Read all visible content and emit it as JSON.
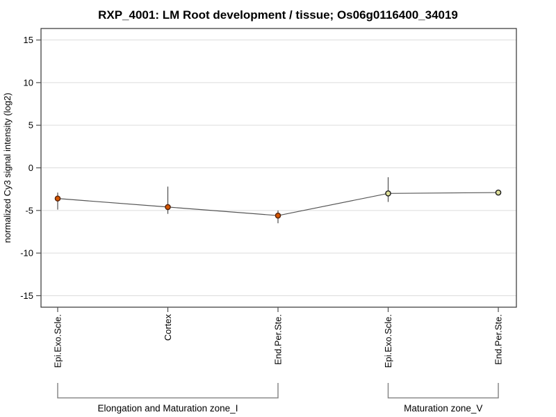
{
  "chart_data": {
    "type": "line",
    "title": "RXP_4001: LM Root development / tissue; Os06g0116400_34019",
    "ylabel": "normalized Cy3 signal intensity (log2)",
    "xlabel": "",
    "ylim": [
      -16.35,
      16.35
    ],
    "yticks": [
      15,
      10,
      5,
      0,
      -5,
      -10,
      -15
    ],
    "grid": true,
    "legend_position": "none",
    "categories": [
      "Epi.Exo.Scle.",
      "Cortex",
      "End.Per.Ste.",
      "Epi.Exo.Scle.",
      "End.Per.Ste."
    ],
    "series": [
      {
        "name": "normalized Cy3 signal intensity (log2)",
        "values": [
          -3.6,
          -4.6,
          -5.6,
          -3.0,
          -2.9
        ],
        "error_high": [
          -2.9,
          -2.2,
          -5.0,
          -1.1,
          -2.6
        ],
        "error_low": [
          -4.9,
          -5.4,
          -6.5,
          -4.0,
          -3.2
        ]
      }
    ],
    "groups": [
      {
        "label": "Elongation and Maturation zone_I",
        "start": 0,
        "end": 2
      },
      {
        "label": "Maturation zone_V",
        "start": 3,
        "end": 4
      }
    ],
    "colors": {
      "marker_fill": [
        "#d45500",
        "#d45500",
        "#d45500",
        "#dfe09a",
        "#dfe09a"
      ],
      "marker_stroke": [
        "#55220a",
        "#55220a",
        "#55220a",
        "#1a1a1a",
        "#1a1a1a"
      ],
      "line": "#555555",
      "error_bar": "#4d4d4d",
      "gridline": "#dcdcdc",
      "frame": "#333333",
      "tick": "#4d4d4d",
      "bracket": "#888888",
      "background": "#ffffff"
    }
  }
}
